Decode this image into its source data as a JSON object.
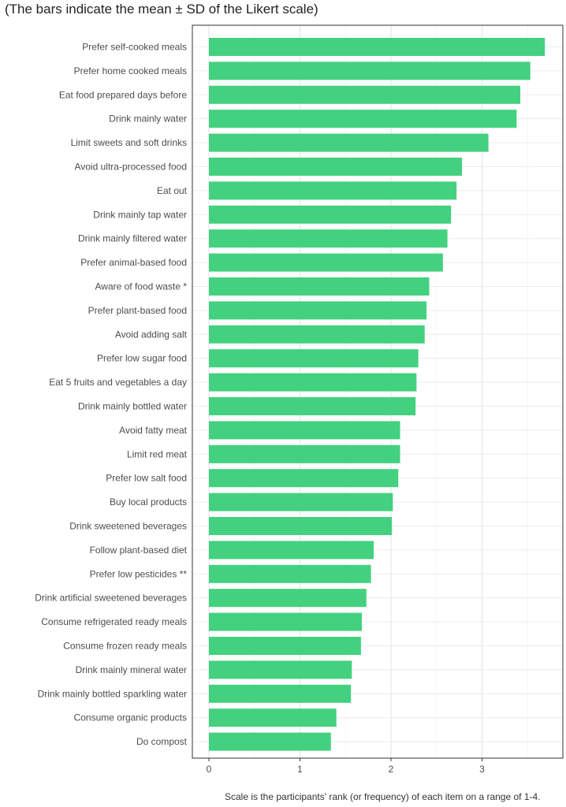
{
  "title": "(The bars indicate the mean ± SD of the Likert scale)",
  "footnote": "Scale is the participants' rank (or frequency) of each item on a range of 1-4.",
  "chart_data": {
    "type": "bar",
    "orientation": "horizontal",
    "bar_color": "#43d17f",
    "grid": true,
    "xlim": [
      0,
      3.8
    ],
    "xticks": [
      0,
      1,
      2,
      3
    ],
    "categories": [
      "Prefer self-cooked meals",
      "Prefer home cooked meals",
      "Eat food prepared days before",
      "Drink mainly water",
      "Limit sweets and soft drinks",
      "Avoid ultra-processed food",
      "Eat out",
      "Drink mainly tap water",
      "Drink mainly filtered water",
      "Prefer animal-based food",
      "Aware of food waste *",
      "Prefer plant-based food",
      "Avoid adding salt",
      "Prefer low sugar food",
      "Eat 5 fruits and vegetables a day",
      "Drink mainly bottled water",
      "Avoid fatty meat",
      "Limit red meat",
      "Prefer low salt food",
      "Buy local products",
      "Drink  sweetened beverages",
      "Follow plant-based diet",
      "Prefer low pesticides **",
      "Drink artificial sweetened beverages",
      "Consume refrigerated ready meals",
      "Consume frozen ready meals",
      "Drink mainly mineral water",
      "Drink mainly bottled sparkling water",
      "Consume organic products",
      "Do compost"
    ],
    "values": [
      3.69,
      3.53,
      3.42,
      3.38,
      3.07,
      2.78,
      2.72,
      2.66,
      2.62,
      2.57,
      2.42,
      2.39,
      2.37,
      2.3,
      2.28,
      2.27,
      2.1,
      2.1,
      2.08,
      2.02,
      2.01,
      1.81,
      1.78,
      1.73,
      1.68,
      1.67,
      1.57,
      1.56,
      1.4,
      1.34
    ]
  }
}
